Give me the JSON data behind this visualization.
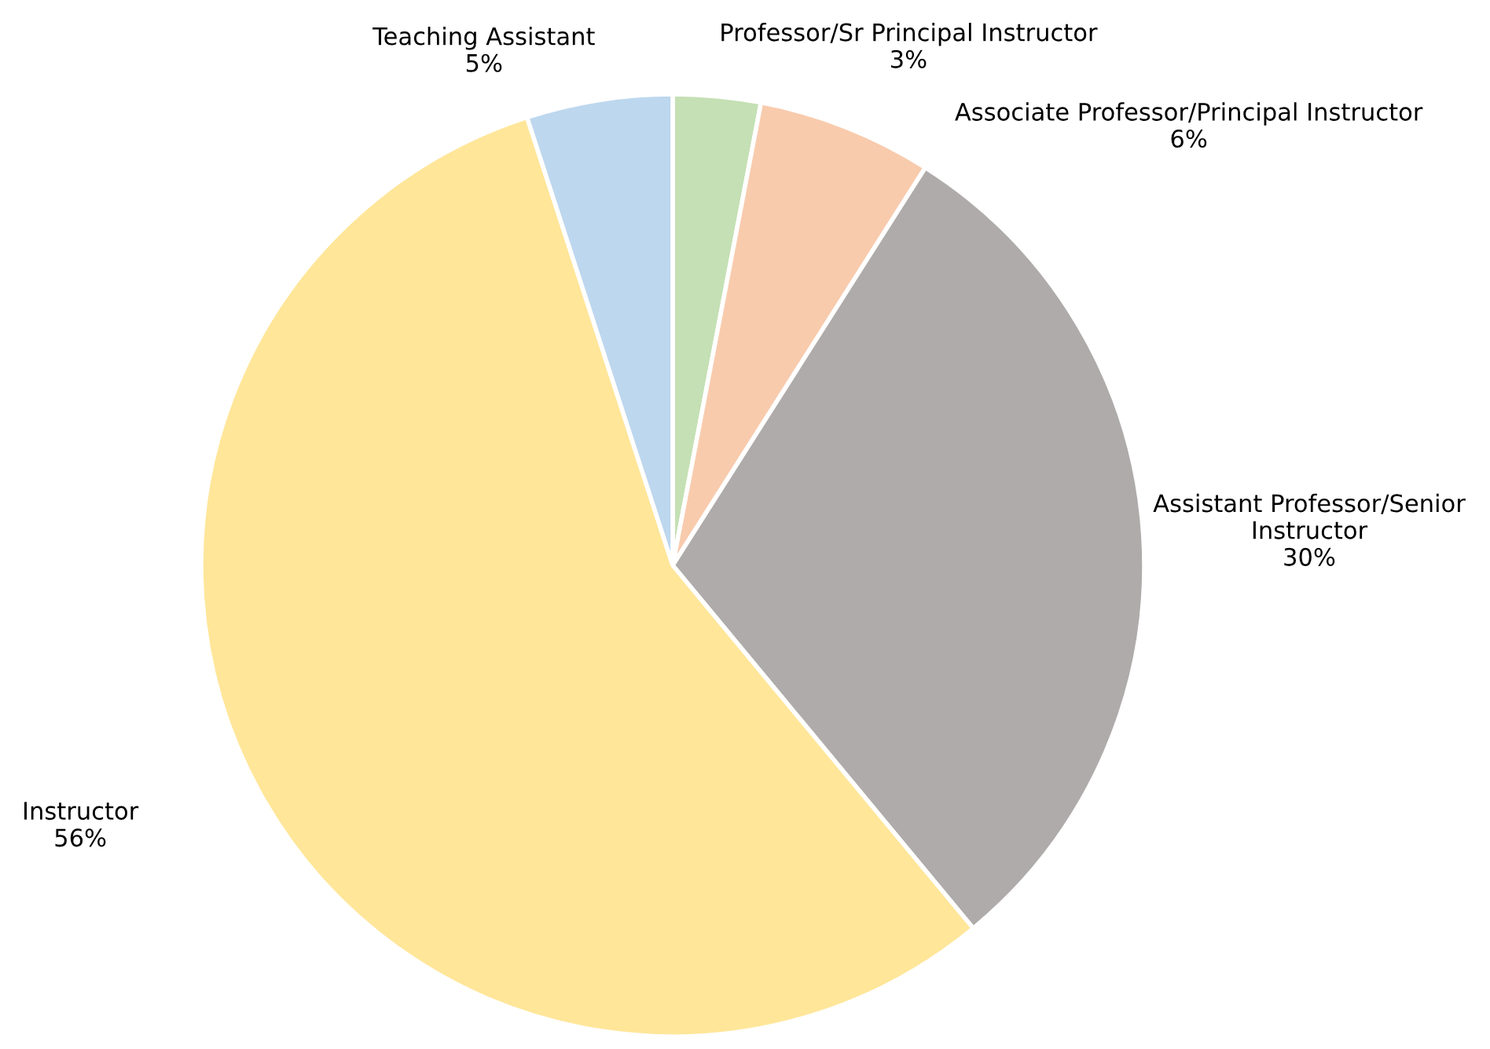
{
  "chart_data": {
    "type": "pie",
    "categories": [
      "Professor/Sr Principal Instructor",
      "Associate Professor/Principal Instructor",
      "Assistant Professor/Senior Instructor",
      "Instructor",
      "Teaching Assistant"
    ],
    "values": [
      3,
      6,
      30,
      56,
      5
    ],
    "value_labels": [
      "3%",
      "6%",
      "30%",
      "56%",
      "5%"
    ],
    "colors": [
      "#c5e0b4",
      "#f8cbad",
      "#afabab",
      "#ffe699",
      "#bdd7ee"
    ]
  }
}
